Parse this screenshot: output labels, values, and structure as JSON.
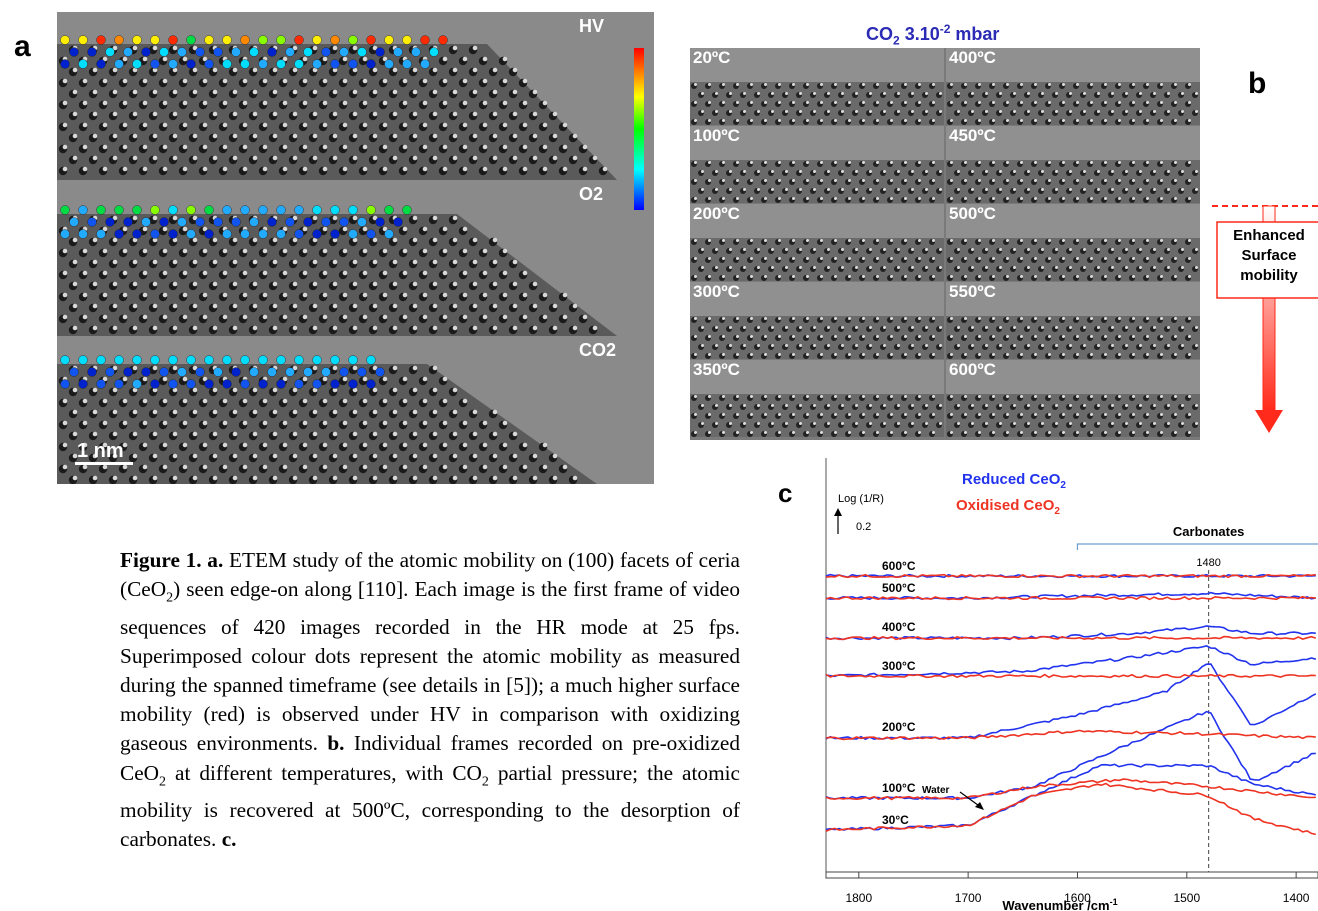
{
  "panel_a": {
    "letter": "a",
    "labels": [
      "HV",
      "O2",
      "CO2"
    ],
    "scale_bar": "1 nm"
  },
  "panel_b": {
    "letter": "b",
    "title_main": "CO",
    "title_sub": "2",
    "title_rest": " 3.10",
    "title_sup": "-2",
    "title_unit": " mbar",
    "left_temps": [
      "20ºC",
      "100ºC",
      "200ºC",
      "300ºC",
      "350ºC"
    ],
    "right_temps": [
      "400ºC",
      "450ºC",
      "500ºC",
      "550ºC",
      "600ºC"
    ],
    "annotation": [
      "Enhanced",
      "Surface",
      "mobility"
    ],
    "colors": {
      "arrow": "#ff2a1a",
      "title": "#2b2bb5"
    }
  },
  "panel_c": {
    "letter": "c",
    "y_label": "Log (1/R)",
    "scale_value": "0.2",
    "legend": [
      {
        "name": "Reduced CeO",
        "sub": "2",
        "color": "#2233ee"
      },
      {
        "name": "Oxidised CeO",
        "sub": "2",
        "color": "#ee3322"
      }
    ],
    "carbonates_label": "Carbonates",
    "peak_label": "1480",
    "water_label": "Water",
    "x_label": "Wavenumber /cm",
    "x_label_sup": "-1",
    "x_ticks": [
      "1800",
      "1700",
      "1600",
      "1500",
      "1400"
    ],
    "temps": [
      "600°C",
      "500°C",
      "400°C",
      "300°C",
      "200°C",
      "100°C",
      "30°C"
    ]
  },
  "chart_data": {
    "type": "line",
    "xlabel": "Wavenumber /cm-1",
    "ylabel": "Log (1/R)",
    "xlim": [
      1830,
      1380
    ],
    "x_ticks": [
      1800,
      1700,
      1600,
      1500,
      1400
    ],
    "reference_line": 1480,
    "series": [
      {
        "name": "Reduced CeO2",
        "color": "#2233ee",
        "curves": {
          "600°C": [
            [
              1830,
              0
            ],
            [
              1700,
              0
            ],
            [
              1600,
              0
            ],
            [
              1500,
              0
            ],
            [
              1380,
              0
            ]
          ],
          "500°C": [
            [
              1830,
              0
            ],
            [
              1700,
              0
            ],
            [
              1600,
              0.01
            ],
            [
              1480,
              0.02
            ],
            [
              1380,
              0
            ]
          ],
          "400°C": [
            [
              1830,
              0
            ],
            [
              1650,
              0
            ],
            [
              1550,
              0.02
            ],
            [
              1480,
              0.05
            ],
            [
              1440,
              0.02
            ],
            [
              1380,
              0.02
            ]
          ],
          "300°C": [
            [
              1830,
              0
            ],
            [
              1650,
              0.02
            ],
            [
              1550,
              0.08
            ],
            [
              1480,
              0.13
            ],
            [
              1440,
              0.05
            ],
            [
              1380,
              0.08
            ]
          ],
          "200°C": [
            [
              1830,
              0
            ],
            [
              1700,
              0
            ],
            [
              1600,
              0.1
            ],
            [
              1520,
              0.2
            ],
            [
              1480,
              0.33
            ],
            [
              1440,
              0.05
            ],
            [
              1380,
              0.2
            ]
          ],
          "100°C": [
            [
              1830,
              0
            ],
            [
              1700,
              0
            ],
            [
              1640,
              0.05
            ],
            [
              1560,
              0.22
            ],
            [
              1480,
              0.38
            ],
            [
              1440,
              0.07
            ],
            [
              1380,
              0.2
            ]
          ],
          "30°C": [
            [
              1830,
              0
            ],
            [
              1700,
              0.02
            ],
            [
              1640,
              0.15
            ],
            [
              1580,
              0.28
            ],
            [
              1480,
              0.28
            ],
            [
              1440,
              0.2
            ],
            [
              1380,
              0.15
            ]
          ]
        }
      },
      {
        "name": "Oxidised CeO2",
        "color": "#ee3322",
        "curves": {
          "600°C": [
            [
              1830,
              0
            ],
            [
              1700,
              0
            ],
            [
              1600,
              0
            ],
            [
              1500,
              0
            ],
            [
              1380,
              0
            ]
          ],
          "500°C": [
            [
              1830,
              0
            ],
            [
              1700,
              0
            ],
            [
              1600,
              0
            ],
            [
              1500,
              0
            ],
            [
              1380,
              0
            ]
          ],
          "400°C": [
            [
              1830,
              0
            ],
            [
              1700,
              0
            ],
            [
              1600,
              0
            ],
            [
              1500,
              0
            ],
            [
              1380,
              0
            ]
          ],
          "300°C": [
            [
              1830,
              0
            ],
            [
              1700,
              0
            ],
            [
              1600,
              0
            ],
            [
              1500,
              0
            ],
            [
              1380,
              0
            ]
          ],
          "200°C": [
            [
              1830,
              0
            ],
            [
              1700,
              0
            ],
            [
              1600,
              0.03
            ],
            [
              1500,
              0.02
            ],
            [
              1380,
              0
            ]
          ],
          "100°C": [
            [
              1830,
              0
            ],
            [
              1700,
              0
            ],
            [
              1640,
              0.05
            ],
            [
              1560,
              0.08
            ],
            [
              1480,
              0.05
            ],
            [
              1380,
              0
            ]
          ],
          "30°C": [
            [
              1830,
              0
            ],
            [
              1700,
              0.02
            ],
            [
              1640,
              0.15
            ],
            [
              1580,
              0.2
            ],
            [
              1480,
              0.15
            ],
            [
              1440,
              0.05
            ],
            [
              1380,
              -0.02
            ]
          ]
        }
      }
    ]
  },
  "caption": {
    "fig": "Figure 1.",
    "a": "a.",
    "t1": " ETEM study of the atomic mobility on (100) facets of ceria (CeO",
    "t1sub": "2",
    "t2": ") seen edge-on along [110]. Each image is the first frame of video sequences of 420 images recorded in the HR mode at 25 fps. Superimposed colour dots represent the atomic mobility as measured during the spanned timeframe (see details in [5]); a much higher surface mobility (red) is observed under HV in comparison with oxidizing gaseous environments. ",
    "b": "b.",
    "t3": " Individual frames recorded on pre-oxidized CeO",
    "t3sub": "2",
    "t4": " at different temperatures, with CO",
    "t4sub": "2",
    "t5": " partial pressure; the atomic mobility is recovered at 500ºC, corresponding to the desorption of carbonates. ",
    "c": "c."
  }
}
